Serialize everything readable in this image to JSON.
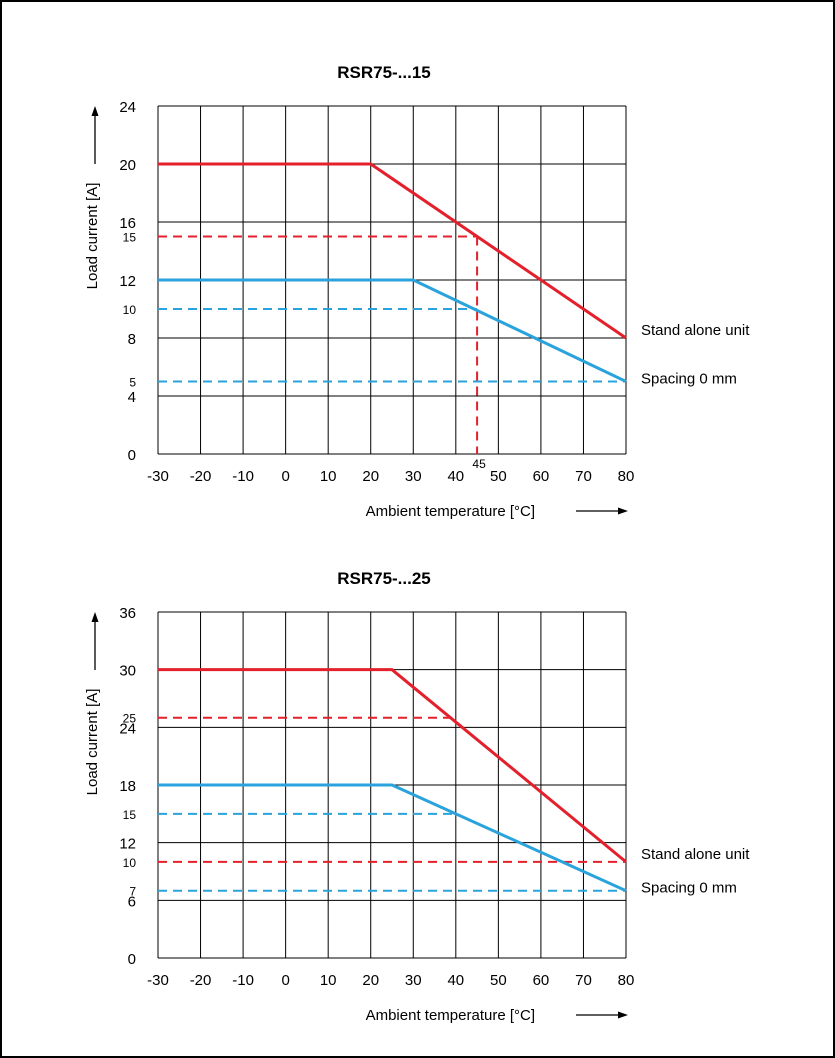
{
  "chart_data": [
    {
      "type": "line",
      "title": "RSR75-...15",
      "xlabel": "Ambient temperature [°C]",
      "ylabel": "Load current [A]",
      "xlim": [
        -30,
        80
      ],
      "ylim": [
        0,
        24
      ],
      "x_ticks": [
        "-30",
        "-20",
        "-10",
        "0",
        "10",
        "20",
        "30",
        "40",
        "50",
        "60",
        "70",
        "80"
      ],
      "y_ticks": [
        "0",
        "4",
        "8",
        "12",
        "16",
        "20",
        "24"
      ],
      "grid": true,
      "series": [
        {
          "name": "Stand alone unit",
          "color": "#e3202b",
          "x": [
            -30,
            20,
            80
          ],
          "y": [
            20,
            20,
            8
          ]
        },
        {
          "name": "Spacing 0 mm",
          "color": "#2aa3dc",
          "x": [
            -30,
            30,
            80
          ],
          "y": [
            12,
            12,
            5
          ]
        }
      ],
      "reference_lines": [
        {
          "label": "15",
          "color": "#e3202b",
          "y": 15,
          "x_start": -30,
          "x_end": 45
        },
        {
          "label": "10",
          "color": "#2aa3dc",
          "y": 10,
          "x_start": -30,
          "x_end": 45
        },
        {
          "label": "5",
          "color": "#2aa3dc",
          "y": 5,
          "x_start": -30,
          "x_end": 80
        }
      ],
      "vertical_markers": [
        {
          "label": "45",
          "color": "#e3202b",
          "x": 45,
          "y_from": 0,
          "y_to": 15
        }
      ]
    },
    {
      "type": "line",
      "title": "RSR75-...25",
      "xlabel": "Ambient temperature [°C]",
      "ylabel": "Load current [A]",
      "xlim": [
        -30,
        80
      ],
      "ylim": [
        0,
        36
      ],
      "x_ticks": [
        "-30",
        "-20",
        "-10",
        "0",
        "10",
        "20",
        "30",
        "40",
        "50",
        "60",
        "70",
        "80"
      ],
      "y_ticks": [
        "0",
        "6",
        "12",
        "18",
        "24",
        "30",
        "36"
      ],
      "grid": true,
      "series": [
        {
          "name": "Stand alone unit",
          "color": "#e3202b",
          "x": [
            -30,
            25,
            80
          ],
          "y": [
            30,
            30,
            10
          ]
        },
        {
          "name": "Spacing 0 mm",
          "color": "#2aa3dc",
          "x": [
            -30,
            25,
            80
          ],
          "y": [
            18,
            18,
            7
          ]
        }
      ],
      "reference_lines": [
        {
          "label": "25",
          "color": "#e3202b",
          "y": 25,
          "x_start": -30,
          "x_end": 40
        },
        {
          "label": "15",
          "color": "#2aa3dc",
          "y": 15,
          "x_start": -30,
          "x_end": 40
        },
        {
          "label": "10",
          "color": "#e3202b",
          "y": 10,
          "x_start": -30,
          "x_end": 80
        },
        {
          "label": "7",
          "color": "#2aa3dc",
          "y": 7,
          "x_start": -30,
          "x_end": 80
        }
      ],
      "vertical_markers": []
    }
  ]
}
